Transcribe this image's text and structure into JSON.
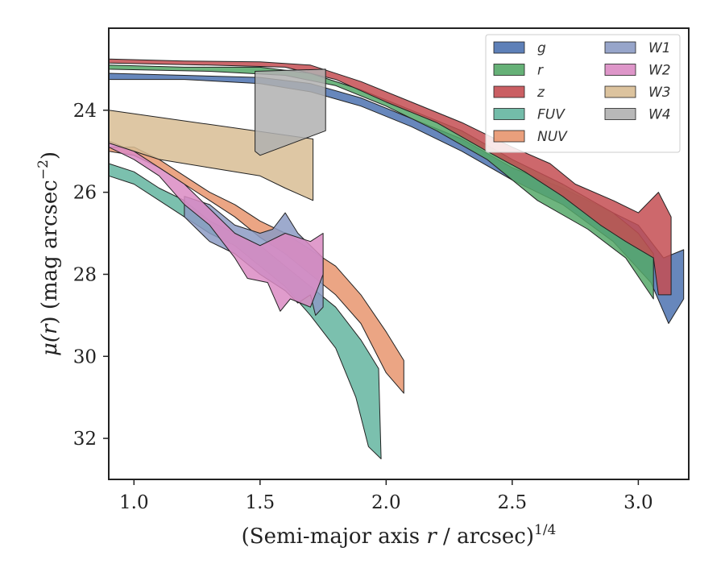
{
  "chart_data": {
    "type": "area",
    "xlabel_main": "(Semi-major axis ",
    "xlabel_var": "r",
    "xlabel_tail": " / arcsec)",
    "xlabel_sup": "1/4",
    "ylabel_pre": "μ(",
    "ylabel_var": "r",
    "ylabel_post": ") (mag arcsec",
    "ylabel_sup": "−2",
    "ylabel_close": ")",
    "xlim": [
      0.9,
      3.2
    ],
    "ylim": [
      33.0,
      22.0
    ],
    "y_inverted": true,
    "x_ticks": [
      1.0,
      1.5,
      2.0,
      2.5,
      3.0
    ],
    "x_tick_labels": [
      "1.0",
      "1.5",
      "2.0",
      "2.5",
      "3.0"
    ],
    "y_ticks": [
      24,
      26,
      28,
      30,
      32
    ],
    "y_tick_labels": [
      "24",
      "26",
      "28",
      "30",
      "32"
    ],
    "grid": false,
    "legend_placement": "top-right",
    "legend_columns": 2,
    "series": [
      {
        "name": "g",
        "color": "#4c72b0",
        "upper": [
          [
            0.9,
            23.1
          ],
          [
            1.2,
            23.15
          ],
          [
            1.5,
            23.2
          ],
          [
            1.7,
            23.35
          ],
          [
            1.9,
            23.7
          ],
          [
            2.1,
            24.2
          ],
          [
            2.3,
            24.7
          ],
          [
            2.5,
            25.4
          ],
          [
            2.7,
            25.9
          ],
          [
            2.9,
            26.5
          ],
          [
            3.0,
            26.8
          ],
          [
            3.1,
            27.6
          ],
          [
            3.18,
            27.4
          ]
        ],
        "lower": [
          [
            3.18,
            28.6
          ],
          [
            3.12,
            29.2
          ],
          [
            3.05,
            28.2
          ],
          [
            2.9,
            27.2
          ],
          [
            2.7,
            26.3
          ],
          [
            2.5,
            25.7
          ],
          [
            2.3,
            25.0
          ],
          [
            2.1,
            24.4
          ],
          [
            1.9,
            23.9
          ],
          [
            1.7,
            23.55
          ],
          [
            1.5,
            23.35
          ],
          [
            1.2,
            23.25
          ],
          [
            0.9,
            23.25
          ]
        ]
      },
      {
        "name": "r",
        "color": "#55a868",
        "upper": [
          [
            0.9,
            22.9
          ],
          [
            1.2,
            22.95
          ],
          [
            1.5,
            22.95
          ],
          [
            1.7,
            23.1
          ],
          [
            1.9,
            23.5
          ],
          [
            2.1,
            24.0
          ],
          [
            2.3,
            24.5
          ],
          [
            2.5,
            25.2
          ],
          [
            2.7,
            25.8
          ],
          [
            2.9,
            26.5
          ],
          [
            3.0,
            27.0
          ],
          [
            3.06,
            27.5
          ]
        ],
        "lower": [
          [
            3.06,
            28.6
          ],
          [
            2.95,
            27.6
          ],
          [
            2.8,
            26.9
          ],
          [
            2.6,
            26.2
          ],
          [
            2.4,
            25.2
          ],
          [
            2.2,
            24.5
          ],
          [
            2.0,
            23.9
          ],
          [
            1.8,
            23.4
          ],
          [
            1.6,
            23.15
          ],
          [
            1.3,
            23.05
          ],
          [
            0.9,
            23.0
          ]
        ]
      },
      {
        "name": "z",
        "color": "#c44e52",
        "upper": [
          [
            0.9,
            22.75
          ],
          [
            1.2,
            22.8
          ],
          [
            1.5,
            22.82
          ],
          [
            1.7,
            22.9
          ],
          [
            1.9,
            23.3
          ],
          [
            2.1,
            23.8
          ],
          [
            2.3,
            24.3
          ],
          [
            2.5,
            24.9
          ],
          [
            2.65,
            25.3
          ],
          [
            2.75,
            25.8
          ],
          [
            2.9,
            26.2
          ],
          [
            3.0,
            26.5
          ],
          [
            3.08,
            26.0
          ],
          [
            3.13,
            26.6
          ],
          [
            3.13,
            28.5
          ]
        ],
        "lower": [
          [
            3.08,
            28.5
          ],
          [
            3.06,
            27.6
          ],
          [
            2.95,
            27.2
          ],
          [
            2.85,
            26.8
          ],
          [
            2.7,
            26.1
          ],
          [
            2.55,
            25.5
          ],
          [
            2.4,
            25.0
          ],
          [
            2.2,
            24.3
          ],
          [
            2.0,
            23.8
          ],
          [
            1.8,
            23.25
          ],
          [
            1.6,
            22.95
          ],
          [
            1.3,
            22.9
          ],
          [
            0.9,
            22.85
          ]
        ]
      },
      {
        "name": "FUV",
        "color": "#64b5a0",
        "upper": [
          [
            0.9,
            25.3
          ],
          [
            1.0,
            25.5
          ],
          [
            1.1,
            25.9
          ],
          [
            1.2,
            26.2
          ],
          [
            1.3,
            26.7
          ],
          [
            1.4,
            27.0
          ],
          [
            1.5,
            27.3
          ],
          [
            1.6,
            27.8
          ],
          [
            1.7,
            28.3
          ],
          [
            1.8,
            28.8
          ],
          [
            1.9,
            29.6
          ],
          [
            1.97,
            30.3
          ]
        ],
        "lower": [
          [
            1.98,
            32.5
          ],
          [
            1.93,
            32.2
          ],
          [
            1.88,
            31.0
          ],
          [
            1.8,
            29.8
          ],
          [
            1.7,
            29.0
          ],
          [
            1.6,
            28.3
          ],
          [
            1.5,
            27.8
          ],
          [
            1.4,
            27.3
          ],
          [
            1.3,
            27.0
          ],
          [
            1.2,
            26.6
          ],
          [
            1.1,
            26.2
          ],
          [
            1.0,
            25.8
          ],
          [
            0.9,
            25.6
          ]
        ]
      },
      {
        "name": "NUV",
        "color": "#e8956e",
        "upper": [
          [
            0.9,
            24.9
          ],
          [
            1.0,
            24.9
          ],
          [
            1.1,
            25.2
          ],
          [
            1.2,
            25.6
          ],
          [
            1.3,
            26.0
          ],
          [
            1.4,
            26.3
          ],
          [
            1.5,
            26.7
          ],
          [
            1.6,
            27.0
          ],
          [
            1.7,
            27.4
          ],
          [
            1.8,
            27.8
          ],
          [
            1.9,
            28.5
          ],
          [
            2.0,
            29.4
          ],
          [
            2.07,
            30.1
          ]
        ],
        "lower": [
          [
            2.07,
            30.9
          ],
          [
            2.0,
            30.4
          ],
          [
            1.9,
            29.2
          ],
          [
            1.8,
            28.5
          ],
          [
            1.7,
            28.0
          ],
          [
            1.6,
            27.5
          ],
          [
            1.5,
            27.1
          ],
          [
            1.4,
            26.6
          ],
          [
            1.3,
            26.2
          ],
          [
            1.2,
            25.8
          ],
          [
            1.1,
            25.4
          ],
          [
            1.0,
            25.1
          ],
          [
            0.9,
            25.0
          ]
        ]
      },
      {
        "name": "W1",
        "color": "#8c9bc4",
        "upper": [
          [
            1.2,
            26.1
          ],
          [
            1.3,
            26.3
          ],
          [
            1.4,
            26.8
          ],
          [
            1.5,
            27.0
          ],
          [
            1.55,
            26.9
          ],
          [
            1.6,
            26.5
          ],
          [
            1.65,
            27.0
          ],
          [
            1.7,
            27.3
          ],
          [
            1.75,
            27.6
          ]
        ],
        "lower": [
          [
            1.75,
            28.8
          ],
          [
            1.72,
            29.0
          ],
          [
            1.7,
            28.5
          ],
          [
            1.65,
            28.7
          ],
          [
            1.6,
            28.4
          ],
          [
            1.5,
            28.0
          ],
          [
            1.4,
            27.5
          ],
          [
            1.3,
            27.2
          ],
          [
            1.2,
            26.6
          ]
        ]
      },
      {
        "name": "W2",
        "color": "#da8bc3",
        "upper": [
          [
            0.9,
            24.75
          ],
          [
            1.0,
            25.0
          ],
          [
            1.1,
            25.4
          ],
          [
            1.2,
            25.8
          ],
          [
            1.3,
            26.4
          ],
          [
            1.4,
            27.0
          ],
          [
            1.5,
            27.3
          ],
          [
            1.6,
            27.0
          ],
          [
            1.7,
            27.2
          ],
          [
            1.75,
            27.0
          ]
        ],
        "lower": [
          [
            1.75,
            28.0
          ],
          [
            1.7,
            28.8
          ],
          [
            1.62,
            28.6
          ],
          [
            1.58,
            28.9
          ],
          [
            1.53,
            28.2
          ],
          [
            1.45,
            28.1
          ],
          [
            1.4,
            27.6
          ],
          [
            1.3,
            26.8
          ],
          [
            1.2,
            26.3
          ],
          [
            1.1,
            25.6
          ],
          [
            1.0,
            25.2
          ],
          [
            0.9,
            24.9
          ]
        ]
      },
      {
        "name": "W3",
        "color": "#d8bd94",
        "upper": [
          [
            0.9,
            24.0
          ],
          [
            1.71,
            24.7
          ]
        ],
        "lower": [
          [
            1.71,
            26.2
          ],
          [
            1.6,
            25.9
          ],
          [
            1.5,
            25.6
          ],
          [
            1.3,
            25.4
          ],
          [
            1.1,
            25.2
          ],
          [
            0.9,
            24.8
          ]
        ]
      },
      {
        "name": "W4",
        "color": "#b0b0b0",
        "upper": [
          [
            1.48,
            23.05
          ],
          [
            1.76,
            23.0
          ]
        ],
        "lower": [
          [
            1.76,
            24.5
          ],
          [
            1.5,
            25.1
          ],
          [
            1.48,
            25.0
          ]
        ]
      }
    ]
  }
}
